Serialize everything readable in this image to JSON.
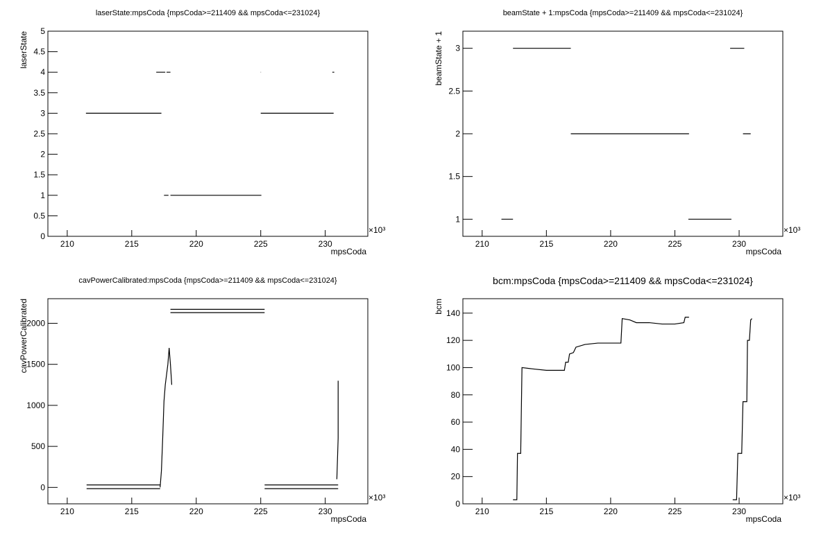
{
  "chart_data": [
    {
      "type": "line",
      "title": "laserState:mpsCoda {mpsCoda>=211409 && mpsCoda<=231024}",
      "x_label": "mpsCoda",
      "y_label": "laserState",
      "x_exponent": "×10³",
      "color": "#000000",
      "xlim": [
        208.5,
        233.3
      ],
      "xticks": [
        210,
        215,
        220,
        225,
        230
      ],
      "ylim": [
        0,
        5
      ],
      "yticks": [
        0,
        0.5,
        1,
        1.5,
        2,
        2.5,
        3,
        3.5,
        4,
        4.5,
        5
      ],
      "x": [
        211.45,
        217.3,
        null,
        216.9,
        217.6,
        null,
        217.7,
        218.0,
        null,
        217.5,
        217.85,
        null,
        218.0,
        225.05,
        null,
        225.0,
        225.02,
        null,
        225.0,
        230.65,
        null,
        230.55,
        230.7
      ],
      "values": [
        3,
        3,
        null,
        4,
        4,
        null,
        4,
        4,
        null,
        1,
        1,
        null,
        1,
        1,
        null,
        4,
        4,
        null,
        3,
        3,
        null,
        4,
        4
      ]
    },
    {
      "type": "line",
      "title": "beamState + 1:mpsCoda {mpsCoda>=211409 && mpsCoda<=231024}",
      "x_label": "mpsCoda",
      "y_label": "beamState + 1",
      "x_exponent": "×10³",
      "color": "#000000",
      "xlim": [
        208.5,
        233.4
      ],
      "xticks": [
        210,
        215,
        220,
        225,
        230
      ],
      "ylim": [
        0.8,
        3.2
      ],
      "yticks": [
        1,
        1.5,
        2,
        2.5,
        3
      ],
      "x": [
        211.5,
        212.4,
        null,
        212.4,
        216.9,
        null,
        216.9,
        226.1,
        null,
        226.05,
        229.4,
        null,
        229.3,
        230.4,
        null,
        230.3,
        230.9
      ],
      "values": [
        1,
        1,
        null,
        3,
        3,
        null,
        2,
        2,
        null,
        1,
        1,
        null,
        3,
        3,
        null,
        2,
        2
      ]
    },
    {
      "type": "line",
      "title": "cavPowerCalibrated:mpsCoda {mpsCoda>=211409 && mpsCoda<=231024}",
      "x_label": "mpsCoda",
      "y_label": "cavPowerCalibrated",
      "x_exponent": "×10³",
      "color": "#000000",
      "xlim": [
        208.5,
        233.3
      ],
      "xticks": [
        210,
        215,
        220,
        225,
        230
      ],
      "ylim": [
        -200,
        2300
      ],
      "yticks": [
        0,
        500,
        1000,
        1500,
        2000
      ],
      "x": [
        211.5,
        217.2,
        null,
        211.5,
        217.2,
        null,
        217.2,
        217.3,
        217.4,
        217.5,
        217.6,
        217.8,
        217.9,
        218.0,
        218.1,
        null,
        218.0,
        225.3,
        null,
        218.0,
        225.3,
        null,
        225.3,
        231.0,
        null,
        225.3,
        231.0,
        null,
        230.9,
        231.0,
        231.0
      ],
      "values": [
        30,
        30,
        null,
        -15,
        -15,
        null,
        0,
        200,
        600,
        1050,
        1250,
        1500,
        1700,
        1500,
        1250,
        null,
        2170,
        2170,
        null,
        2130,
        2130,
        null,
        30,
        30,
        null,
        -15,
        -15,
        null,
        100,
        600,
        1300
      ]
    },
    {
      "type": "line",
      "title": "bcm:mpsCoda {mpsCoda>=211409 && mpsCoda<=231024}",
      "x_label": "mpsCoda",
      "y_label": "bcm",
      "x_exponent": "×10³",
      "color": "#000000",
      "xlim": [
        208.5,
        233.4
      ],
      "xticks": [
        210,
        215,
        220,
        225,
        230
      ],
      "ylim": [
        0,
        150.6
      ],
      "yticks": [
        0,
        20,
        40,
        60,
        80,
        100,
        120,
        140
      ],
      "x": [
        212.4,
        212.7,
        212.75,
        213.0,
        213.1,
        214.0,
        215.0,
        216.4,
        216.5,
        216.7,
        216.8,
        217.1,
        217.3,
        218.0,
        219.0,
        220.8,
        220.9,
        221.5,
        222.0,
        223.0,
        224.0,
        225.0,
        225.7,
        225.8,
        226.1,
        null,
        229.5,
        229.8,
        229.9,
        230.2,
        230.3,
        230.6,
        230.65,
        230.8,
        230.9,
        231.0
      ],
      "values": [
        3,
        3,
        37,
        37,
        100,
        99,
        98,
        98,
        104,
        104,
        110,
        111,
        115,
        117,
        118,
        118,
        136,
        135,
        133,
        133,
        132,
        132,
        133,
        137,
        137,
        null,
        3,
        3,
        37,
        37,
        75,
        75,
        120,
        120,
        135,
        136
      ]
    }
  ]
}
